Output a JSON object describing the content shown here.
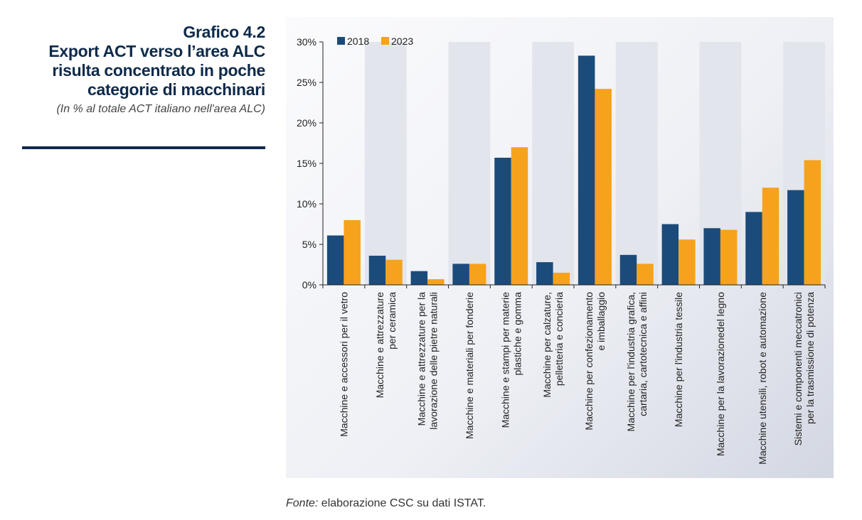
{
  "figure": {
    "number": "Grafico 4.2",
    "title_lines": [
      "Export ACT verso l’area ALC",
      "risulta concentrato in poche",
      "categorie di macchinari"
    ],
    "subtitle": "(In % al totale ACT italiano nell'area ALC)"
  },
  "source": {
    "label": "Fonte:",
    "text": " elaborazione CSC su dati ISTAT."
  },
  "colors": {
    "2018": "#1b4b7a",
    "2023": "#f7a21c",
    "title": "#0e2a4b",
    "band": "#e3e5ec"
  },
  "chart_data": {
    "type": "bar",
    "title": "",
    "xlabel": "",
    "ylabel": "",
    "ylim": [
      0,
      30
    ],
    "yticks": [
      0,
      5,
      10,
      15,
      20,
      25,
      30
    ],
    "ytick_labels": [
      "0%",
      "5%",
      "10%",
      "15%",
      "20%",
      "25%",
      "30%"
    ],
    "grid": false,
    "legend_position": "top-left",
    "categories": [
      [
        "Macchine e accessori per il vetro"
      ],
      [
        "Macchine e attrezzature",
        "per ceramica"
      ],
      [
        "Macchine e attrezzature per la",
        "lavorazione delle pietre naturali"
      ],
      [
        "Macchine e materiali per fonderie"
      ],
      [
        "Macchine e stampi per materie",
        "plastiche e gomma"
      ],
      [
        "Macchine per calzature,",
        "pelletteria e concieria"
      ],
      [
        "Macchine per confezionamento",
        "e imballaggio"
      ],
      [
        "Macchine per l'industria grafica,",
        "cartaria, cartotecnica e affini"
      ],
      [
        "Macchine per l'industria tessile"
      ],
      [
        "Macchine per la lavorazionedel legno"
      ],
      [
        "Macchine utensili, robot e automazione"
      ],
      [
        "Sistemi e componenti meccatronici",
        "per la trasmissione di potenza"
      ]
    ],
    "series": [
      {
        "name": "2018",
        "values": [
          6.1,
          3.6,
          1.7,
          2.6,
          15.7,
          2.8,
          28.3,
          3.7,
          7.5,
          7.0,
          9.0,
          11.7
        ]
      },
      {
        "name": "2023",
        "values": [
          8.0,
          3.1,
          0.7,
          2.6,
          17.0,
          1.5,
          24.2,
          2.6,
          5.6,
          6.8,
          12.0,
          15.4
        ]
      }
    ]
  }
}
